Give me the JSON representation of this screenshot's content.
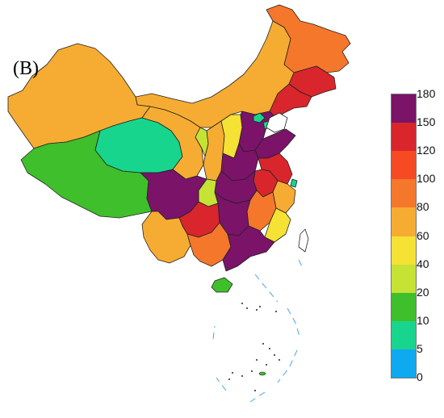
{
  "panel_label": "(B)",
  "legend": {
    "ticks": [
      "180",
      "150",
      "120",
      "100",
      "80",
      "60",
      "40",
      "20",
      "10",
      "5",
      "0"
    ],
    "colors": [
      "#7b1368",
      "#d8262c",
      "#f54a24",
      "#f5772b",
      "#f6ac32",
      "#f6e135",
      "#c5e235",
      "#3fbf2b",
      "#18d58e",
      "#0fa9f0"
    ]
  },
  "regions": [
    {
      "name": "heilongjiang",
      "color": "#f5772b"
    },
    {
      "name": "jilin",
      "color": "#d8262c"
    },
    {
      "name": "liaoning",
      "color": "#d8262c"
    },
    {
      "name": "inner-mongolia",
      "color": "#f6ac32"
    },
    {
      "name": "xinjiang",
      "color": "#f6ac32"
    },
    {
      "name": "tibet",
      "color": "#3fbf2b"
    },
    {
      "name": "qinghai",
      "color": "#18d58e"
    },
    {
      "name": "gansu",
      "color": "#f6ac32"
    },
    {
      "name": "ningxia",
      "color": "#c5e235"
    },
    {
      "name": "shaanxi",
      "color": "#f6ac32"
    },
    {
      "name": "shanxi",
      "color": "#f6e135"
    },
    {
      "name": "hebei",
      "color": "#7b1368"
    },
    {
      "name": "shandong",
      "color": "#7b1368"
    },
    {
      "name": "henan",
      "color": "#7b1368"
    },
    {
      "name": "jiangsu",
      "color": "#d8262c"
    },
    {
      "name": "anhui",
      "color": "#d8262c"
    },
    {
      "name": "hubei",
      "color": "#7b1368"
    },
    {
      "name": "sichuan",
      "color": "#7b1368"
    },
    {
      "name": "chongqing",
      "color": "#c5e235"
    },
    {
      "name": "guizhou",
      "color": "#d8262c"
    },
    {
      "name": "yunnan",
      "color": "#f6ac32"
    },
    {
      "name": "guangxi",
      "color": "#f5772b"
    },
    {
      "name": "hunan",
      "color": "#7b1368"
    },
    {
      "name": "jiangxi",
      "color": "#f5772b"
    },
    {
      "name": "zhejiang",
      "color": "#f6ac32"
    },
    {
      "name": "fujian",
      "color": "#f6e135"
    },
    {
      "name": "guangdong",
      "color": "#7b1368"
    },
    {
      "name": "hainan",
      "color": "#3fbf2b"
    },
    {
      "name": "beijing",
      "color": "#18d58e"
    },
    {
      "name": "tianjin",
      "color": "#18d58e"
    },
    {
      "name": "shanghai",
      "color": "#18d58e"
    }
  ]
}
